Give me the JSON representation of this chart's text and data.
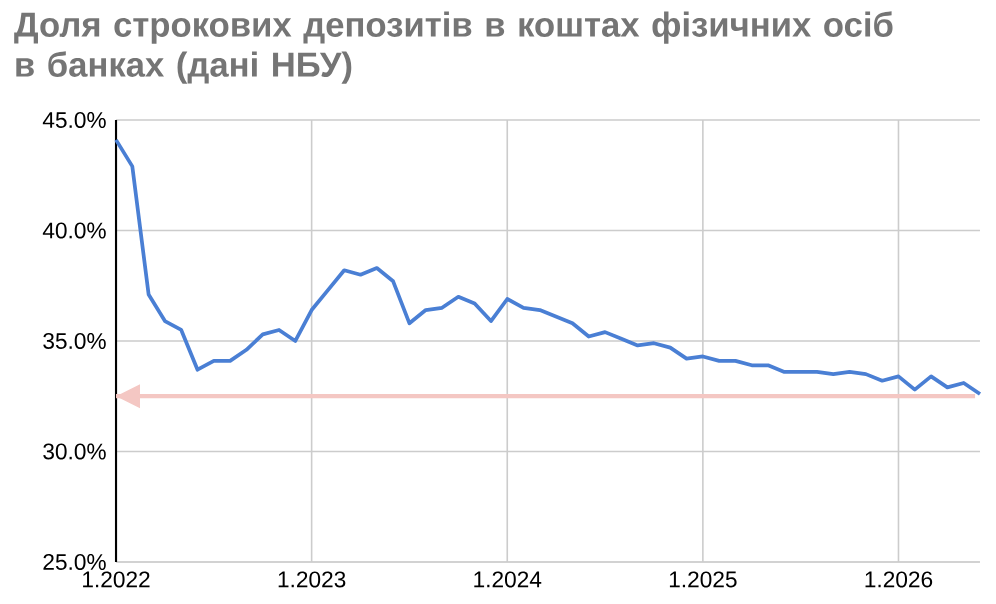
{
  "chart_data": {
    "type": "line",
    "title": "Доля строкових депозитів в коштах фізичних осіб в банках (дані НБУ)",
    "x": [
      "2022-01",
      "2022-02",
      "2022-03",
      "2022-04",
      "2022-05",
      "2022-06",
      "2022-07",
      "2022-08",
      "2022-09",
      "2022-10",
      "2022-11",
      "2022-12",
      "2023-01",
      "2023-02",
      "2023-03",
      "2023-04",
      "2023-05",
      "2023-06",
      "2023-07",
      "2023-08",
      "2023-09",
      "2023-10",
      "2023-11",
      "2023-12",
      "2024-01",
      "2024-02",
      "2024-03",
      "2024-04",
      "2024-05",
      "2024-06",
      "2024-07",
      "2024-08",
      "2024-09",
      "2024-10",
      "2024-11",
      "2024-12",
      "2025-01",
      "2025-02",
      "2025-03",
      "2025-04",
      "2025-05",
      "2025-06",
      "2025-07",
      "2025-08",
      "2025-09",
      "2025-10",
      "2025-11",
      "2025-12",
      "2026-01",
      "2026-02",
      "2026-03",
      "2026-04",
      "2026-05",
      "2026-06"
    ],
    "series": [
      {
        "color": "#4a7fd4",
        "values": [
          44.1,
          42.9,
          37.1,
          35.9,
          35.5,
          33.7,
          34.1,
          34.1,
          34.6,
          35.3,
          35.5,
          35.0,
          36.4,
          37.3,
          38.2,
          38.0,
          38.3,
          37.7,
          35.8,
          36.4,
          36.5,
          37.0,
          36.7,
          35.9,
          36.9,
          36.5,
          36.4,
          36.1,
          35.8,
          35.2,
          35.4,
          35.1,
          34.8,
          34.9,
          34.7,
          34.2,
          34.3,
          34.1,
          34.1,
          33.9,
          33.9,
          33.6,
          33.6,
          33.6,
          33.5,
          33.6,
          33.5,
          33.2,
          33.4,
          32.8,
          33.4,
          32.9,
          33.1,
          32.6
        ]
      }
    ],
    "xlim": [
      "2022-01",
      "2026-06"
    ],
    "xticks": [
      {
        "value": "2022-01",
        "label": "1.2022"
      },
      {
        "value": "2023-01",
        "label": "1.2023"
      },
      {
        "value": "2024-01",
        "label": "1.2024"
      },
      {
        "value": "2025-01",
        "label": "1.2025"
      },
      {
        "value": "2026-01",
        "label": "1.2026"
      }
    ],
    "ylim": [
      25,
      45
    ],
    "yticks": [
      {
        "value": 25,
        "label": "25.0%"
      },
      {
        "value": 30,
        "label": "30.0%"
      },
      {
        "value": 35,
        "label": "35.0%"
      },
      {
        "value": 40,
        "label": "40.0%"
      },
      {
        "value": 45,
        "label": "45.0%"
      }
    ],
    "ref_lines": [
      {
        "axis": "y",
        "value": 32.5,
        "color": "#f4c7c3"
      }
    ],
    "grid": true
  }
}
